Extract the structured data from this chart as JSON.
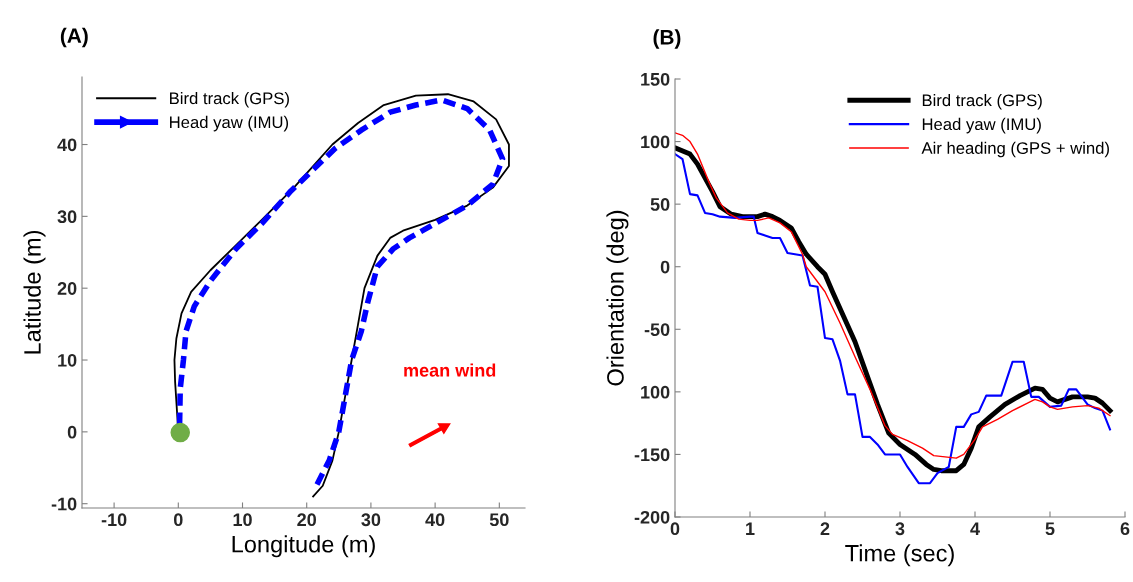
{
  "chart_data": [
    {
      "type": "line",
      "title": "(A)",
      "xlabel": "Longitude (m)",
      "ylabel": "Latitude (m)",
      "xlim": [
        -15,
        54
      ],
      "ylim": [
        -10.6,
        49.4
      ],
      "xticks": [
        -10,
        0,
        10,
        20,
        30,
        40,
        50
      ],
      "yticks": [
        -10,
        0,
        10,
        20,
        30,
        40
      ],
      "grid": false,
      "legend": "top left",
      "annotations": [
        "mean wind"
      ],
      "series": [
        {
          "name": "Bird track (GPS)",
          "color": "#000000",
          "x": [
            0,
            -0.5,
            -0.6,
            -0.3,
            0.5,
            2,
            5,
            9,
            13,
            18,
            21,
            24,
            28,
            32,
            37,
            42,
            46,
            49.5,
            51.5,
            51.5,
            49,
            45,
            40,
            35,
            33,
            31,
            29,
            28,
            27,
            26,
            25,
            24,
            22.5,
            21
          ],
          "values": [
            0,
            7,
            10,
            13,
            16.5,
            19.5,
            22.5,
            26,
            29.5,
            34,
            37,
            40,
            43,
            45.5,
            46.8,
            47,
            46,
            43.5,
            40,
            37,
            34,
            31.5,
            29.5,
            28,
            27,
            24.5,
            20,
            15,
            10,
            5,
            0,
            -4,
            -7.5,
            -9
          ]
        },
        {
          "name": "Head yaw (IMU)",
          "color": "#0000ff",
          "line_style": "dashed",
          "x": [
            0.2,
            0.3,
            0.8,
            1.2,
            2.5,
            5,
            9,
            13,
            17.5,
            21,
            24.5,
            28.5,
            33,
            37,
            41,
            45,
            48.5,
            50.5,
            49,
            45,
            40,
            36,
            33.5,
            31,
            29.5,
            28.5,
            27,
            26,
            25,
            23.5,
            21.5
          ],
          "values": [
            1,
            6,
            10,
            14,
            17.5,
            21,
            25.5,
            29,
            33.5,
            36.5,
            39.5,
            42,
            44.5,
            45.5,
            46.2,
            45,
            42,
            38,
            34.5,
            31.5,
            29,
            27,
            25.5,
            23,
            18,
            14,
            10,
            5,
            0,
            -4,
            -7.5
          ]
        },
        {
          "type": "scatter",
          "color": "#70ad47",
          "x": [
            0.3
          ],
          "values": [
            -0.1
          ]
        }
      ]
    },
    {
      "type": "line",
      "title": "(B)",
      "xlabel": "Time (sec)",
      "ylabel": "Orientation (deg)",
      "xlim": [
        0,
        6
      ],
      "ylim": [
        -200,
        150
      ],
      "xticks": [
        0,
        1,
        2,
        3,
        4,
        5,
        6
      ],
      "yticks": [
        -200,
        -150,
        {
          "value": -100,
          "label": "100"
        },
        -50,
        0,
        50,
        100,
        150
      ],
      "grid": false,
      "legend": "top right",
      "series": [
        {
          "name": "Bird track (GPS)",
          "color": "#000000",
          "x": [
            0,
            0.2,
            0.3,
            0.5,
            0.6,
            0.75,
            0.9,
            1.0,
            1.1,
            1.2,
            1.3,
            1.4,
            1.55,
            1.65,
            1.75,
            1.9,
            2.0,
            2.1,
            2.25,
            2.4,
            2.55,
            2.7,
            2.85,
            3.0,
            3.2,
            3.35,
            3.45,
            3.55,
            3.75,
            3.85,
            3.95,
            4.05,
            4.2,
            4.4,
            4.6,
            4.8,
            4.9,
            5.0,
            5.1,
            5.3,
            5.5,
            5.6,
            5.7,
            5.8
          ],
          "values": [
            95,
            90,
            82,
            60,
            48,
            42,
            40,
            40,
            40,
            42,
            40,
            37,
            31,
            20,
            10,
            0,
            -6,
            -20,
            -40,
            -60,
            -85,
            -110,
            -133,
            -142,
            -150,
            -158,
            -162,
            -163,
            -163,
            -158,
            -145,
            -128,
            -120,
            -110,
            -103,
            -97,
            -98,
            -105,
            -108,
            -104,
            -104,
            -105,
            -109,
            -115
          ]
        },
        {
          "name": "Head yaw (IMU)",
          "color": "#0000ff",
          "x": [
            0,
            0.1,
            0.2,
            0.3,
            0.4,
            0.5,
            0.6,
            0.8,
            1.0,
            1.05,
            1.1,
            1.2,
            1.3,
            1.4,
            1.5,
            1.6,
            1.7,
            1.8,
            1.9,
            2.0,
            2.1,
            2.2,
            2.3,
            2.4,
            2.5,
            2.6,
            2.7,
            2.8,
            2.9,
            3.0,
            3.1,
            3.25,
            3.4,
            3.5,
            3.65,
            3.75,
            3.85,
            3.95,
            4.05,
            4.15,
            4.35,
            4.5,
            4.65,
            4.75,
            4.85,
            5.0,
            5.15,
            5.25,
            5.35,
            5.5,
            5.6,
            5.7,
            5.8
          ],
          "values": [
            90,
            86,
            58,
            57,
            43,
            42,
            40,
            39,
            40,
            40,
            27,
            25,
            23,
            23,
            11,
            10,
            9,
            -15,
            -16,
            -57,
            -58,
            -75,
            -102,
            -102,
            -136,
            -136,
            -142,
            -150,
            -150,
            -150,
            -160,
            -173,
            -173,
            -165,
            -160,
            -128,
            -128,
            -118,
            -116,
            -103,
            -103,
            -76,
            -76,
            -104,
            -104,
            -112,
            -111,
            -98,
            -98,
            -110,
            -113,
            -115,
            -130
          ]
        },
        {
          "name": "Air heading (GPS + wind)",
          "color": "#ff0000",
          "x": [
            0,
            0.1,
            0.2,
            0.3,
            0.45,
            0.55,
            0.7,
            0.85,
            1.0,
            1.1,
            1.25,
            1.4,
            1.55,
            1.7,
            1.75,
            1.9,
            2.0,
            2.2,
            2.4,
            2.6,
            2.8,
            2.9,
            3.1,
            3.3,
            3.45,
            3.6,
            3.75,
            3.85,
            4.0,
            4.1,
            4.3,
            4.5,
            4.7,
            4.8,
            4.9,
            5.0,
            5.1,
            5.3,
            5.5,
            5.65,
            5.8
          ],
          "values": [
            107,
            105,
            100,
            90,
            68,
            55,
            43,
            38,
            37,
            37,
            39,
            35,
            28,
            10,
            0,
            -12,
            -20,
            -45,
            -72,
            -98,
            -127,
            -134,
            -139,
            -145,
            -151,
            -152,
            -153,
            -150,
            -138,
            -128,
            -122,
            -115,
            -109,
            -106,
            -108,
            -112,
            -114,
            -112,
            -111,
            -113,
            -119
          ]
        }
      ]
    }
  ]
}
